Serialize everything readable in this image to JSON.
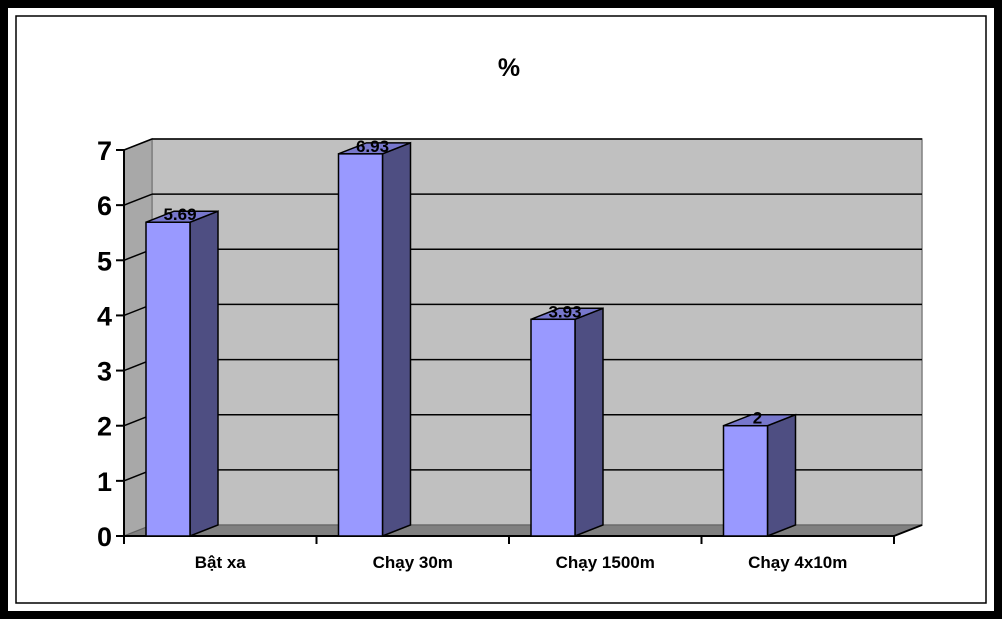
{
  "chart_data": {
    "type": "bar",
    "title": "%",
    "xlabel": "",
    "ylabel": "",
    "categories": [
      "Bật xa",
      "Chạy 30m",
      "Chạy 1500m",
      "Chạy 4x10m"
    ],
    "values": [
      5.69,
      6.93,
      3.93,
      2
    ],
    "data_labels": [
      "5.69",
      "6.93",
      "3.93",
      "2"
    ],
    "ylim": [
      0,
      7
    ],
    "yticks": [
      "0",
      "1",
      "2",
      "3",
      "4",
      "5",
      "6",
      "7"
    ],
    "grid": true,
    "legend": "none",
    "style": "3d-column"
  },
  "colors": {
    "bar_front": "#9999FF",
    "bar_side": "#4E4E82",
    "bar_top": "#7777CC",
    "wall": "#C0C0C0",
    "floor": "#808080",
    "frame": "#000000"
  }
}
